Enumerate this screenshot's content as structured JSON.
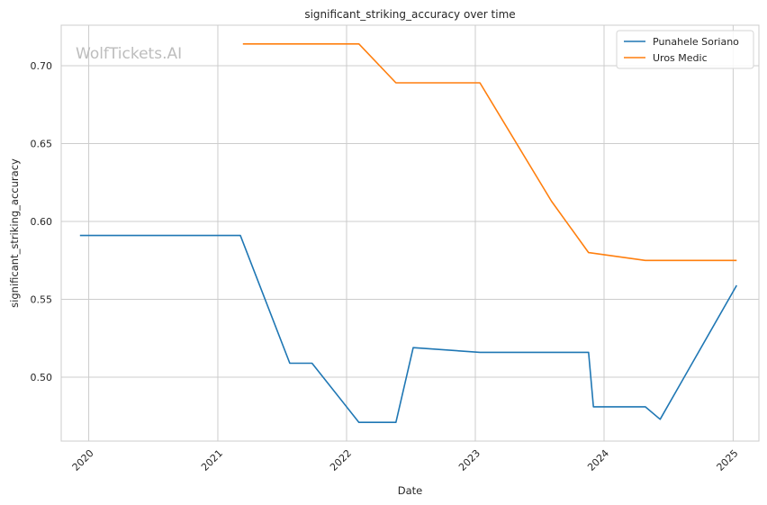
{
  "chart_data": {
    "type": "line",
    "title": "significant_striking_accuracy over time",
    "xlabel": "Date",
    "ylabel": "significant_striking_accuracy",
    "watermark": "WolfTickets.AI",
    "x_ticks": [
      "2020",
      "2021",
      "2022",
      "2023",
      "2024",
      "2025"
    ],
    "y_ticks": [
      "0.50",
      "0.55",
      "0.60",
      "0.65",
      "0.70"
    ],
    "xlim": [
      "2019-10-15",
      "2025-03-15"
    ],
    "ylim": [
      0.459,
      0.726
    ],
    "grid": true,
    "legend_position": "top-right",
    "series": [
      {
        "name": "Punahele Soriano",
        "color": "#1f77b4",
        "points": [
          [
            "2019-12-07",
            0.591
          ],
          [
            "2021-03-06",
            0.591
          ],
          [
            "2021-07-24",
            0.509
          ],
          [
            "2021-09-25",
            0.509
          ],
          [
            "2022-02-05",
            0.471
          ],
          [
            "2022-05-21",
            0.471
          ],
          [
            "2022-07-09",
            0.519
          ],
          [
            "2023-01-14",
            0.516
          ],
          [
            "2023-11-18",
            0.516
          ],
          [
            "2023-12-02",
            0.481
          ],
          [
            "2024-04-27",
            0.481
          ],
          [
            "2024-06-08",
            0.473
          ],
          [
            "2025-01-11",
            0.559
          ]
        ]
      },
      {
        "name": "Uros Medic",
        "color": "#ff7f0e",
        "points": [
          [
            "2021-03-13",
            0.714
          ],
          [
            "2022-02-05",
            0.714
          ],
          [
            "2022-05-21",
            0.689
          ],
          [
            "2023-01-14",
            0.689
          ],
          [
            "2023-08-05",
            0.613
          ],
          [
            "2023-11-18",
            0.58
          ],
          [
            "2024-04-27",
            0.575
          ],
          [
            "2025-01-11",
            0.575
          ]
        ]
      }
    ]
  }
}
